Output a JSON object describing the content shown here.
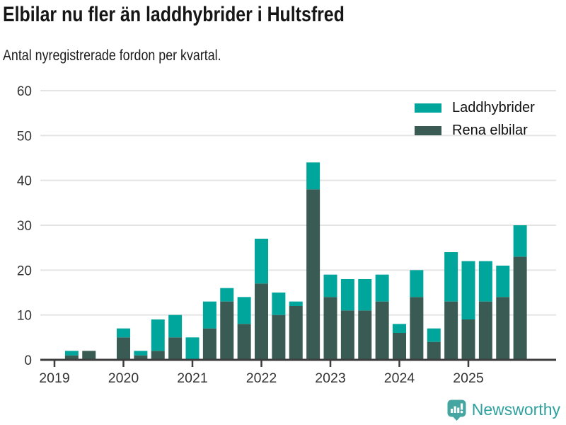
{
  "header": {
    "title": "Elbilar nu fler än laddhybrider i Hultsfred",
    "subtitle": "Antal nyregistrerade fordon per kvartal."
  },
  "legend": {
    "items": [
      {
        "label": "Laddhybrider",
        "color": "#00a69c"
      },
      {
        "label": "Rena elbilar",
        "color": "#3a5b54"
      }
    ]
  },
  "chart_data": {
    "type": "bar",
    "stacked": true,
    "title": "Elbilar nu fler än laddhybrider i Hultsfred",
    "subtitle": "Antal nyregistrerade fordon per kvartal.",
    "categories": [
      "2019 Q1",
      "2019 Q2",
      "2019 Q3",
      "2019 Q4",
      "2020 Q1",
      "2020 Q2",
      "2020 Q3",
      "2020 Q4",
      "2021 Q1",
      "2021 Q2",
      "2021 Q3",
      "2021 Q4",
      "2022 Q1",
      "2022 Q2",
      "2022 Q3",
      "2022 Q4",
      "2023 Q1",
      "2023 Q2",
      "2023 Q3",
      "2023 Q4",
      "2024 Q1",
      "2024 Q2",
      "2024 Q3",
      "2024 Q4",
      "2025 Q1",
      "2025 Q2",
      "2025 Q3",
      "2025 Q4"
    ],
    "series": [
      {
        "name": "Rena elbilar",
        "color": "#3a5b54",
        "values": [
          0,
          1,
          2,
          0,
          5,
          1,
          2,
          5,
          0,
          7,
          13,
          8,
          17,
          10,
          12,
          38,
          14,
          11,
          11,
          13,
          6,
          14,
          4,
          13,
          9,
          13,
          14,
          23
        ]
      },
      {
        "name": "Laddhybrider",
        "color": "#00a69c",
        "values": [
          0,
          1,
          0,
          0,
          2,
          1,
          7,
          5,
          5,
          6,
          3,
          6,
          10,
          5,
          1,
          6,
          5,
          7,
          7,
          6,
          2,
          6,
          3,
          11,
          13,
          9,
          7,
          7
        ]
      }
    ],
    "stack_order_bottom_to_top": [
      "Rena elbilar",
      "Laddhybrider"
    ],
    "x_tick_labels": [
      "2019",
      "2020",
      "2021",
      "2022",
      "2023",
      "2024",
      "2025"
    ],
    "y_ticks": [
      0,
      10,
      20,
      30,
      40,
      50,
      60
    ],
    "ylim": [
      0,
      60
    ],
    "xlabel": "",
    "ylabel": "",
    "grid": "horizontal",
    "legend_position": "top-right"
  },
  "footer": {
    "brand": "Newsworthy"
  },
  "colors": {
    "laddhybrider": "#00a69c",
    "rena_elbilar": "#3a5b54",
    "axis": "#3d3d3d",
    "gridline": "#e4e4e4",
    "tick_text": "#333333",
    "brand_teal": "#45a5a1"
  }
}
